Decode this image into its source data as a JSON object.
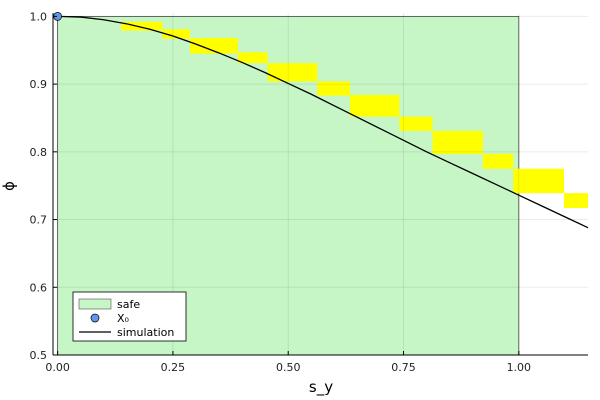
{
  "chart_data": {
    "type": "scatter",
    "xlabel": "s_y",
    "ylabel": "ϕ",
    "xlim": [
      -0.01,
      1.15
    ],
    "ylim": [
      0.5,
      1.005
    ],
    "xticks": [
      0.0,
      0.25,
      0.5,
      0.75,
      1.0
    ],
    "xtick_labels": [
      "0.00",
      "0.25",
      "0.50",
      "0.75",
      "1.00"
    ],
    "yticks": [
      0.5,
      0.6,
      0.7,
      0.8,
      0.9,
      1.0
    ],
    "ytick_labels": [
      "0.5",
      "0.6",
      "0.7",
      "0.8",
      "0.9",
      "1.0"
    ],
    "grid": true,
    "legend_position": "bottom-left",
    "series": [
      {
        "name": "safe",
        "kind": "rect",
        "color": "#c6f5c6",
        "rects": [
          [
            0.0,
            1.0,
            0.5,
            1.0
          ]
        ]
      },
      {
        "kind": "rect",
        "color": "#ffff00",
        "rects": [
          [
            0.138,
            0.227,
            0.979,
            0.992
          ],
          [
            0.227,
            0.287,
            0.967,
            0.981
          ],
          [
            0.287,
            0.391,
            0.945,
            0.968
          ],
          [
            0.391,
            0.455,
            0.931,
            0.947
          ],
          [
            0.455,
            0.563,
            0.904,
            0.931
          ],
          [
            0.563,
            0.634,
            0.883,
            0.904
          ],
          [
            0.634,
            0.741,
            0.852,
            0.884
          ],
          [
            0.741,
            0.813,
            0.831,
            0.852
          ],
          [
            0.813,
            0.922,
            0.797,
            0.831
          ],
          [
            0.922,
            0.988,
            0.775,
            0.797
          ],
          [
            0.988,
            1.098,
            0.739,
            0.775
          ],
          [
            1.098,
            1.16,
            0.717,
            0.739
          ]
        ]
      },
      {
        "name": "X₀",
        "kind": "point",
        "color": "#6495ed",
        "x": [
          0.0
        ],
        "y": [
          1.0
        ]
      },
      {
        "name": "simulation",
        "kind": "line",
        "color": "#000000",
        "x": [
          0.0,
          0.05,
          0.1,
          0.15,
          0.2,
          0.25,
          0.3,
          0.35,
          0.4,
          0.45,
          0.5,
          0.55,
          0.6,
          0.65,
          0.7,
          0.75,
          0.8,
          0.85,
          0.9,
          0.95,
          1.0,
          1.05,
          1.1,
          1.15
        ],
        "y": [
          1.0,
          0.999,
          0.995,
          0.989,
          0.981,
          0.971,
          0.959,
          0.946,
          0.932,
          0.917,
          0.901,
          0.885,
          0.868,
          0.851,
          0.834,
          0.817,
          0.8,
          0.784,
          0.768,
          0.752,
          0.766,
          0.75,
          0.734,
          0.718
        ]
      }
    ]
  }
}
